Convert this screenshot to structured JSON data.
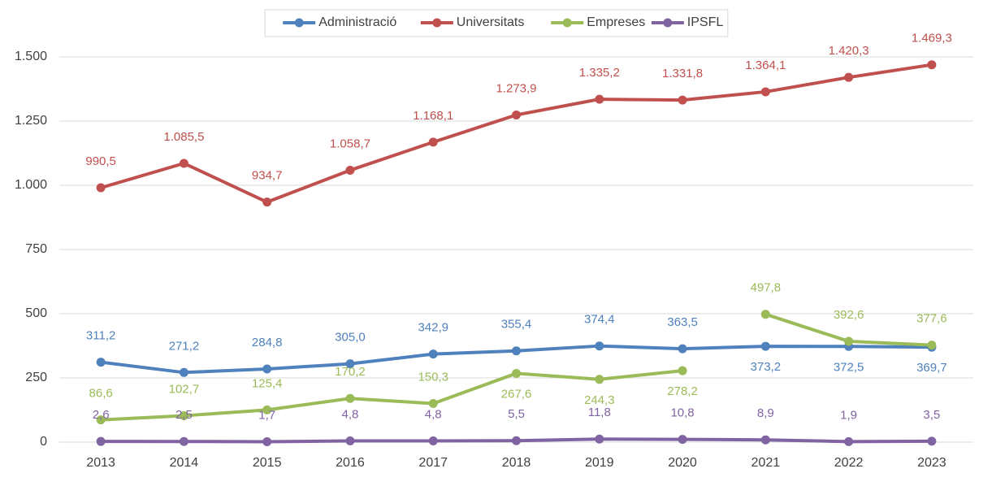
{
  "chart_data": {
    "type": "line",
    "categories": [
      "2013",
      "2014",
      "2015",
      "2016",
      "2017",
      "2018",
      "2019",
      "2020",
      "2021",
      "2022",
      "2023"
    ],
    "series": [
      {
        "name": "Administració",
        "color": "#4f81bd",
        "values": [
          311.2,
          271.2,
          284.8,
          305.0,
          342.9,
          355.4,
          374.4,
          363.5,
          373.2,
          372.5,
          369.7
        ],
        "value_labels": [
          "311,2",
          "271,2",
          "284,8",
          "305,0",
          "342,9",
          "355,4",
          "374,4",
          "363,5",
          "373,2",
          "372,5",
          "369,7"
        ]
      },
      {
        "name": "Universitats",
        "color": "#c0504d",
        "values": [
          990.5,
          1085.5,
          934.7,
          1058.7,
          1168.1,
          1273.9,
          1335.2,
          1331.8,
          1364.1,
          1420.3,
          1469.3
        ],
        "value_labels": [
          "990,5",
          "1.085,5",
          "934,7",
          "1.058,7",
          "1.168,1",
          "1.273,9",
          "1.335,2",
          "1.331,8",
          "1.364,1",
          "1.420,3",
          "1.469,3"
        ]
      },
      {
        "name": "Empreses",
        "color": "#9bbb59",
        "values": [
          86.6,
          102.7,
          125.4,
          170.2,
          150.3,
          267.6,
          244.3,
          278.2,
          497.8,
          392.6,
          377.6
        ],
        "value_labels": [
          "86,6",
          "102,7",
          "125,4",
          "170,2",
          "150,3",
          "267,6",
          "244,3",
          "278,2",
          "497,8",
          "392,6",
          "377,6"
        ],
        "breaks_before": [
          8
        ]
      },
      {
        "name": "IPSFL",
        "color": "#8064a2",
        "values": [
          2.6,
          2.5,
          1.7,
          4.8,
          4.8,
          5.5,
          11.8,
          10.8,
          8.9,
          1.9,
          3.5
        ],
        "value_labels": [
          "2,6",
          "2,5",
          "1,7",
          "4,8",
          "4,8",
          "5,5",
          "11,8",
          "10,8",
          "8,9",
          "1,9",
          "3,5"
        ]
      }
    ],
    "ylim": [
      0,
      1500
    ],
    "yticks": [
      0,
      250,
      500,
      750,
      {
        "value": 1000,
        "label": "1.000"
      },
      {
        "value": 1250,
        "label": "1.250"
      },
      {
        "value": 1500,
        "label": "1.500"
      }
    ],
    "grid": true,
    "legend": "top"
  }
}
